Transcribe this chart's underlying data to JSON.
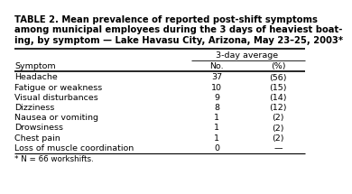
{
  "title_line1": "TABLE 2. Mean prevalence of reported post-shift symptoms",
  "title_line2": "among municipal employees during the 3 days of heaviest boat-",
  "title_line3": "ing, by symptom — Lake Havasu City, Arizona, May 23–25, 2003*",
  "col_header_top": "3-day average",
  "col_headers": [
    "Symptom",
    "No.",
    "(%)"
  ],
  "rows": [
    [
      "Headache",
      "37",
      "(56)"
    ],
    [
      "Fatigue or weakness",
      "10",
      "(15)"
    ],
    [
      "Visual disturbances",
      "9",
      "(14)"
    ],
    [
      "Dizziness",
      "8",
      "(12)"
    ],
    [
      "Nausea or vomiting",
      "1",
      "(2)"
    ],
    [
      "Drowsiness",
      "1",
      "(2)"
    ],
    [
      "Chest pain",
      "1",
      "(2)"
    ],
    [
      "Loss of muscle coordination",
      "0",
      "—"
    ]
  ],
  "footnote": "* N = 66 workshifts.",
  "bg_color": "#ffffff",
  "text_color": "#000000",
  "font_size": 6.8,
  "title_font_size": 7.2
}
